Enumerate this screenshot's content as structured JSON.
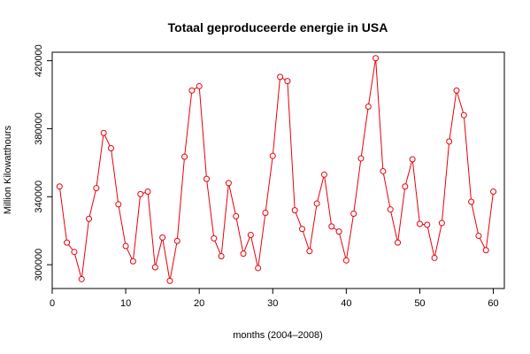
{
  "chart_data": {
    "type": "line",
    "title": "Totaal geproduceerde energie in USA",
    "xlabel": "months (2004–2008)",
    "ylabel": "Million Kilowatthours",
    "xlim": [
      0,
      61.5
    ],
    "ylim": [
      286000,
      425000
    ],
    "x_ticks": [
      0,
      10,
      20,
      30,
      40,
      50,
      60
    ],
    "y_ticks": [
      300000,
      340000,
      380000,
      420000
    ],
    "grid": false,
    "markers": "open-circle",
    "color": "#e8000b",
    "x": [
      1,
      2,
      3,
      4,
      5,
      6,
      7,
      8,
      9,
      10,
      11,
      12,
      13,
      14,
      15,
      16,
      17,
      18,
      19,
      20,
      21,
      22,
      23,
      24,
      25,
      26,
      27,
      28,
      29,
      30,
      31,
      32,
      33,
      34,
      35,
      36,
      37,
      38,
      39,
      40,
      41,
      42,
      43,
      44,
      45,
      46,
      47,
      48,
      49,
      50,
      51,
      52,
      53,
      54,
      55,
      56,
      57,
      58,
      59,
      60
    ],
    "y": [
      346000,
      313000,
      307500,
      291500,
      327000,
      345000,
      377500,
      368500,
      335500,
      311000,
      302000,
      341500,
      343000,
      298500,
      316000,
      290500,
      314000,
      363500,
      402500,
      405000,
      350500,
      315500,
      305000,
      348000,
      328500,
      306500,
      317500,
      298000,
      330500,
      364000,
      410500,
      408000,
      332000,
      321000,
      308000,
      336000,
      353000,
      322500,
      319500,
      302500,
      330000,
      362500,
      393000,
      421500,
      355000,
      332500,
      313000,
      346000,
      362000,
      324000,
      323500,
      304000,
      324500,
      372500,
      402500,
      388000,
      337000,
      317000,
      308500,
      343000
    ]
  }
}
